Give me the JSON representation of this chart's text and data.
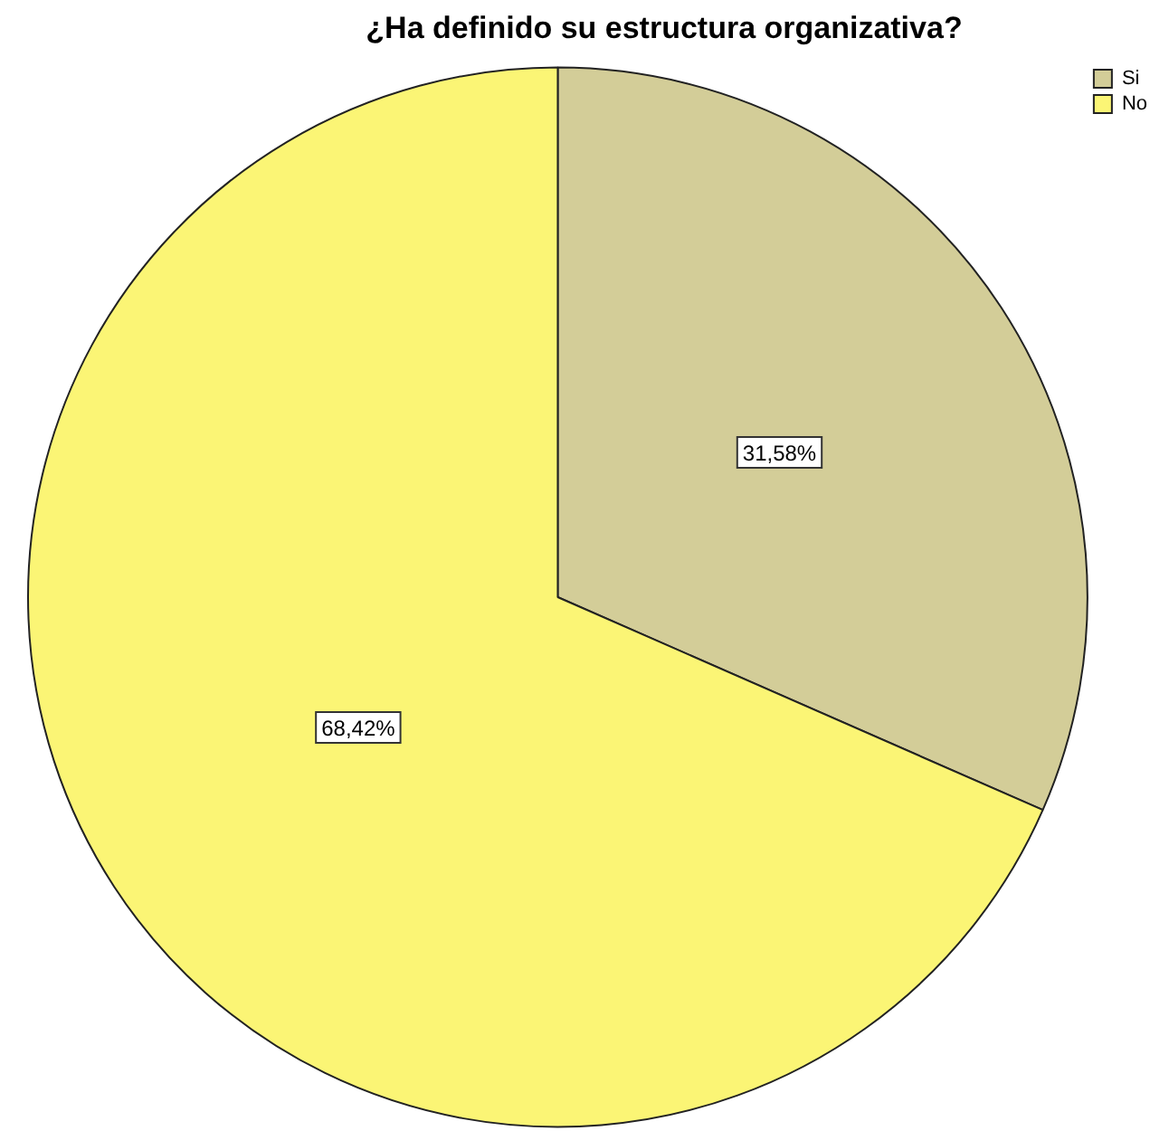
{
  "chart_data": {
    "type": "pie",
    "title": "¿Ha definido su estructura organizativa?",
    "categories": [
      "Si",
      "No"
    ],
    "values": [
      31.58,
      68.42
    ],
    "colors": [
      "#d3cd98",
      "#fbf575"
    ],
    "value_labels": [
      "31,58%",
      "68,42%"
    ],
    "legend": "top right"
  }
}
